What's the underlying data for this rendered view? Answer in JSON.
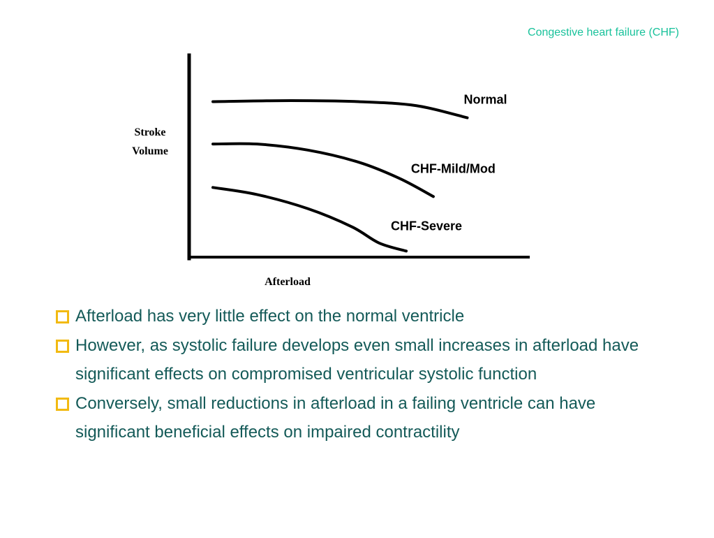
{
  "slide": {
    "header": "Congestive heart failure (CHF)"
  },
  "chart_data": {
    "type": "line",
    "xlabel": "Afterload",
    "ylabel_lines": [
      "Stroke",
      "Volume"
    ],
    "ylim": [
      0,
      100
    ],
    "xlim": [
      0,
      100
    ],
    "grid": false,
    "axis_ticks": false,
    "series": [
      {
        "name": "Normal",
        "color": "#000000",
        "points": [
          [
            7,
            77
          ],
          [
            30,
            77.5
          ],
          [
            50,
            77
          ],
          [
            67,
            75
          ],
          [
            82,
            69
          ]
        ]
      },
      {
        "name": "CHF-Mild/Mod",
        "color": "#000000",
        "points": [
          [
            7,
            56
          ],
          [
            20,
            56
          ],
          [
            35,
            53
          ],
          [
            50,
            47
          ],
          [
            62,
            39
          ],
          [
            72,
            30
          ]
        ]
      },
      {
        "name": "CHF-Severe",
        "color": "#000000",
        "points": [
          [
            7,
            34.5
          ],
          [
            20,
            31
          ],
          [
            35,
            24
          ],
          [
            48,
            15
          ],
          [
            56,
            7
          ],
          [
            64,
            3
          ]
        ]
      }
    ]
  },
  "bullets": [
    {
      "text": "Afterload has very little effect on the normal ventricle"
    },
    {
      "text": "However, as systolic failure develops even small increases in afterload have significant effects on compromised ventricular systolic function"
    },
    {
      "text": "Conversely, small reductions in afterload in a failing ventricle can have significant beneficial effects on impaired contractility"
    }
  ],
  "colors": {
    "header": "#19c29b",
    "body_text": "#145a58",
    "bullet_marker": "#f2ba12",
    "chart_ink": "#000000"
  },
  "icons": {
    "bullet": "hollow-square-bullet-icon"
  }
}
